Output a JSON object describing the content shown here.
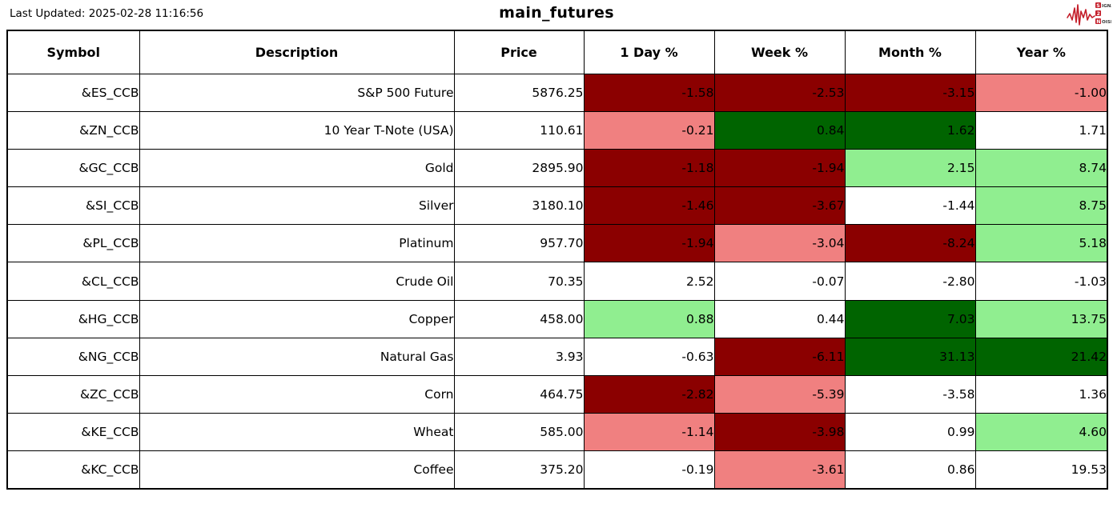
{
  "meta": {
    "last_updated": "Last Updated: 2025-02-28 11:16:56",
    "title": "main_futures"
  },
  "logo": {
    "name": "signal-2-noise-logo",
    "line1_initial": "S",
    "line1_rest": "IGNAL",
    "line2_initial": "2",
    "line3_initial": "N",
    "line3_rest": "OISE",
    "accent_color": "#c41e2a"
  },
  "color_map": {
    "dark_red": "#8B0000",
    "light_red": "#F08080",
    "dark_green": "#006400",
    "light_green": "#90EE90",
    "white": "#FFFFFF"
  },
  "chart_data": {
    "type": "table",
    "title": "main_futures",
    "columns": [
      "Symbol",
      "Description",
      "Price",
      "1 Day %",
      "Week %",
      "Month %",
      "Year %"
    ],
    "rows": [
      {
        "symbol": "&ES_CCB",
        "description": "S&P 500 Future",
        "price": "5876.25",
        "day": "-1.58",
        "week": "-2.53",
        "month": "-3.15",
        "year": "-1.00",
        "colors": {
          "day": "dark_red",
          "week": "dark_red",
          "month": "dark_red",
          "year": "light_red"
        }
      },
      {
        "symbol": "&ZN_CCB",
        "description": "10 Year T-Note (USA)",
        "price": "110.61",
        "day": "-0.21",
        "week": "0.84",
        "month": "1.62",
        "year": "1.71",
        "colors": {
          "day": "light_red",
          "week": "dark_green",
          "month": "dark_green",
          "year": "white"
        }
      },
      {
        "symbol": "&GC_CCB",
        "description": "Gold",
        "price": "2895.90",
        "day": "-1.18",
        "week": "-1.94",
        "month": "2.15",
        "year": "8.74",
        "colors": {
          "day": "dark_red",
          "week": "dark_red",
          "month": "light_green",
          "year": "light_green"
        }
      },
      {
        "symbol": "&SI_CCB",
        "description": "Silver",
        "price": "3180.10",
        "day": "-1.46",
        "week": "-3.67",
        "month": "-1.44",
        "year": "8.75",
        "colors": {
          "day": "dark_red",
          "week": "dark_red",
          "month": "white",
          "year": "light_green"
        }
      },
      {
        "symbol": "&PL_CCB",
        "description": "Platinum",
        "price": "957.70",
        "day": "-1.94",
        "week": "-3.04",
        "month": "-8.24",
        "year": "5.18",
        "colors": {
          "day": "dark_red",
          "week": "light_red",
          "month": "dark_red",
          "year": "light_green"
        }
      },
      {
        "symbol": "&CL_CCB",
        "description": "Crude Oil",
        "price": "70.35",
        "day": "2.52",
        "week": "-0.07",
        "month": "-2.80",
        "year": "-1.03",
        "colors": {
          "day": "white",
          "week": "white",
          "month": "white",
          "year": "white"
        }
      },
      {
        "symbol": "&HG_CCB",
        "description": "Copper",
        "price": "458.00",
        "day": "0.88",
        "week": "0.44",
        "month": "7.03",
        "year": "13.75",
        "colors": {
          "day": "light_green",
          "week": "white",
          "month": "dark_green",
          "year": "light_green"
        }
      },
      {
        "symbol": "&NG_CCB",
        "description": "Natural Gas",
        "price": "3.93",
        "day": "-0.63",
        "week": "-6.11",
        "month": "31.13",
        "year": "21.42",
        "colors": {
          "day": "white",
          "week": "dark_red",
          "month": "dark_green",
          "year": "dark_green"
        }
      },
      {
        "symbol": "&ZC_CCB",
        "description": "Corn",
        "price": "464.75",
        "day": "-2.82",
        "week": "-5.39",
        "month": "-3.58",
        "year": "1.36",
        "colors": {
          "day": "dark_red",
          "week": "light_red",
          "month": "white",
          "year": "white"
        }
      },
      {
        "symbol": "&KE_CCB",
        "description": "Wheat",
        "price": "585.00",
        "day": "-1.14",
        "week": "-3.98",
        "month": "0.99",
        "year": "4.60",
        "colors": {
          "day": "light_red",
          "week": "dark_red",
          "month": "white",
          "year": "light_green"
        }
      },
      {
        "symbol": "&KC_CCB",
        "description": "Coffee",
        "price": "375.20",
        "day": "-0.19",
        "week": "-3.61",
        "month": "0.86",
        "year": "19.53",
        "colors": {
          "day": "white",
          "week": "light_red",
          "month": "white",
          "year": "white"
        }
      }
    ]
  }
}
